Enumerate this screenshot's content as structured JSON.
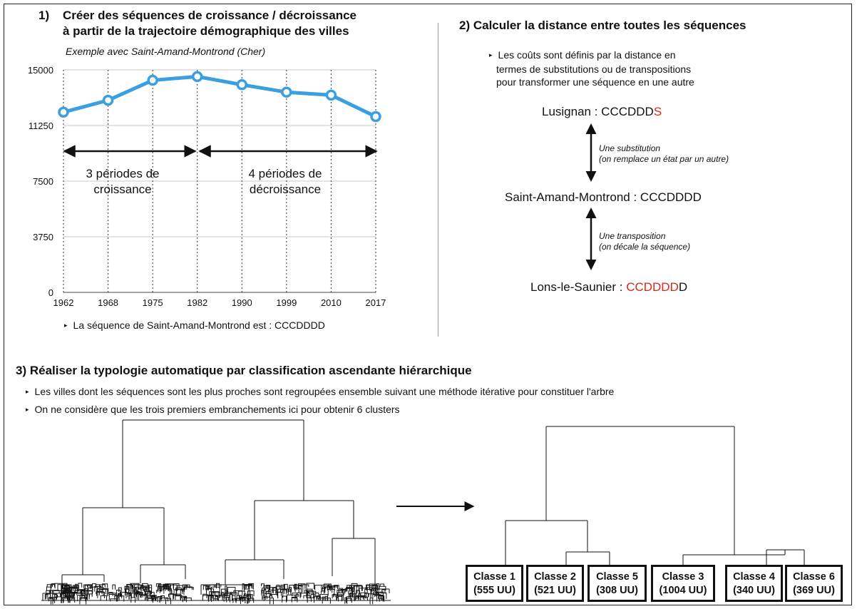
{
  "section1": {
    "heading_num": "1)",
    "heading_line1": "Créer des séquences de croissance / décroissance",
    "heading_line2": "à partir de la trajectoire démographique des villes",
    "example": "Exemple avec Saint-Amand-Montrond (Cher)",
    "growth_label_1": "3 périodes de",
    "growth_label_2": "croissance",
    "decline_label_1": "4 périodes de",
    "decline_label_2": "décroissance",
    "bullet": "La séquence de Saint-Amand-Montrond est : CCCDDDD"
  },
  "section2": {
    "heading": "2)  Calculer la distance entre toutes les séquences",
    "bullet_line1": "Les coûts sont définis par la distance en",
    "bullet_line2": "termes de substitutions ou de transpositions",
    "bullet_line3": "pour transformer une séquence en une autre",
    "seq1_prefix": "Lusignan : CCCDDD",
    "seq1_highlight": "S",
    "sub_line1": "Une substitution",
    "sub_line2": "(on remplace un état par un autre)",
    "seq2": "Saint-Amand-Montrond : CCCDDDD",
    "trans_line1": "Une transposition",
    "trans_line2": "(on décale la séquence)",
    "seq3_prefix": "Lons-le-Saunier : ",
    "seq3_highlight": "CCDDDD",
    "seq3_suffix": "D"
  },
  "section3": {
    "heading": "3)  Réaliser la typologie automatique par classification ascendante hiérarchique",
    "bullet1": "Les villes dont les séquences sont les plus proches sont regroupées ensemble suivant une méthode itérative pour constituer l'arbre",
    "bullet2": "On ne considère que les trois premiers embranchements ici pour obtenir 6 clusters",
    "classes": [
      {
        "name": "Classe 1",
        "count": "(555 UU)"
      },
      {
        "name": "Classe 2",
        "count": "(521 UU)"
      },
      {
        "name": "Classe 5",
        "count": "(308 UU)"
      },
      {
        "name": "Classe 3",
        "count": "(1004 UU)"
      },
      {
        "name": "Classe 4",
        "count": "(340 UU)"
      },
      {
        "name": "Classe 6",
        "count": "(369 UU)"
      }
    ]
  },
  "chart_data": {
    "type": "line",
    "x": [
      "1962",
      "1968",
      "1975",
      "1982",
      "1990",
      "1999",
      "2010",
      "2017"
    ],
    "values": [
      12150,
      12950,
      14300,
      14550,
      14000,
      13500,
      13300,
      11850
    ],
    "yticks": [
      "0",
      "3750",
      "7500",
      "11250",
      "15000"
    ],
    "ylim": [
      0,
      15000
    ],
    "grid": true,
    "line_color": "#3a9fe0"
  }
}
